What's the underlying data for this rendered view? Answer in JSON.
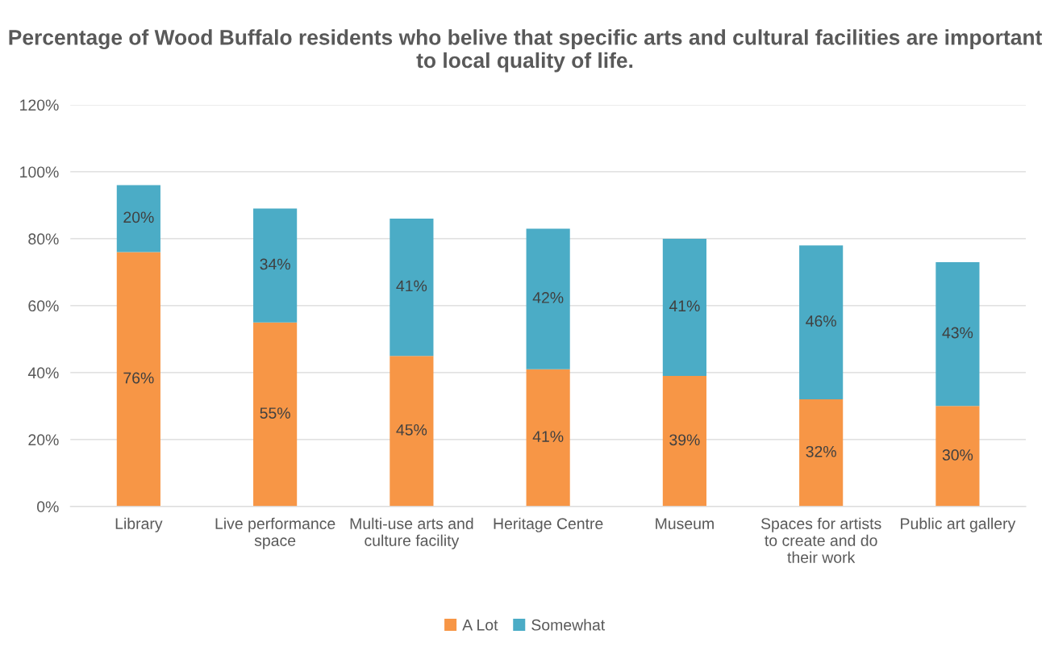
{
  "chart_data": {
    "type": "bar",
    "stacked": true,
    "title": "Percentage of Wood Buffalo residents who belive that specific arts and cultural facilities are important to local quality of life.",
    "categories": [
      "Library",
      "Live performance space",
      "Multi-use arts and culture facility",
      "Heritage Centre",
      "Museum",
      "Spaces for artists to create and do their work",
      "Public art gallery"
    ],
    "series": [
      {
        "name": "A Lot",
        "color": "#f79646",
        "values": [
          76,
          55,
          45,
          41,
          39,
          32,
          30
        ],
        "value_labels": [
          "76%",
          "55%",
          "45%",
          "41%",
          "39%",
          "32%",
          "30%"
        ]
      },
      {
        "name": "Somewhat",
        "color": "#4bacc6",
        "values": [
          20,
          34,
          41,
          42,
          41,
          46,
          43
        ],
        "value_labels": [
          "20%",
          "34%",
          "41%",
          "42%",
          "41%",
          "46%",
          "43%"
        ]
      }
    ],
    "ylim": [
      0,
      120
    ],
    "yticks": [
      {
        "value": 0,
        "label": "0%"
      },
      {
        "value": 20,
        "label": "20%"
      },
      {
        "value": 40,
        "label": "40%"
      },
      {
        "value": 60,
        "label": "60%"
      },
      {
        "value": 80,
        "label": "80%"
      },
      {
        "value": 100,
        "label": "100%"
      },
      {
        "value": 120,
        "label": "120%"
      }
    ],
    "grid": "y",
    "legend": "bottom"
  }
}
